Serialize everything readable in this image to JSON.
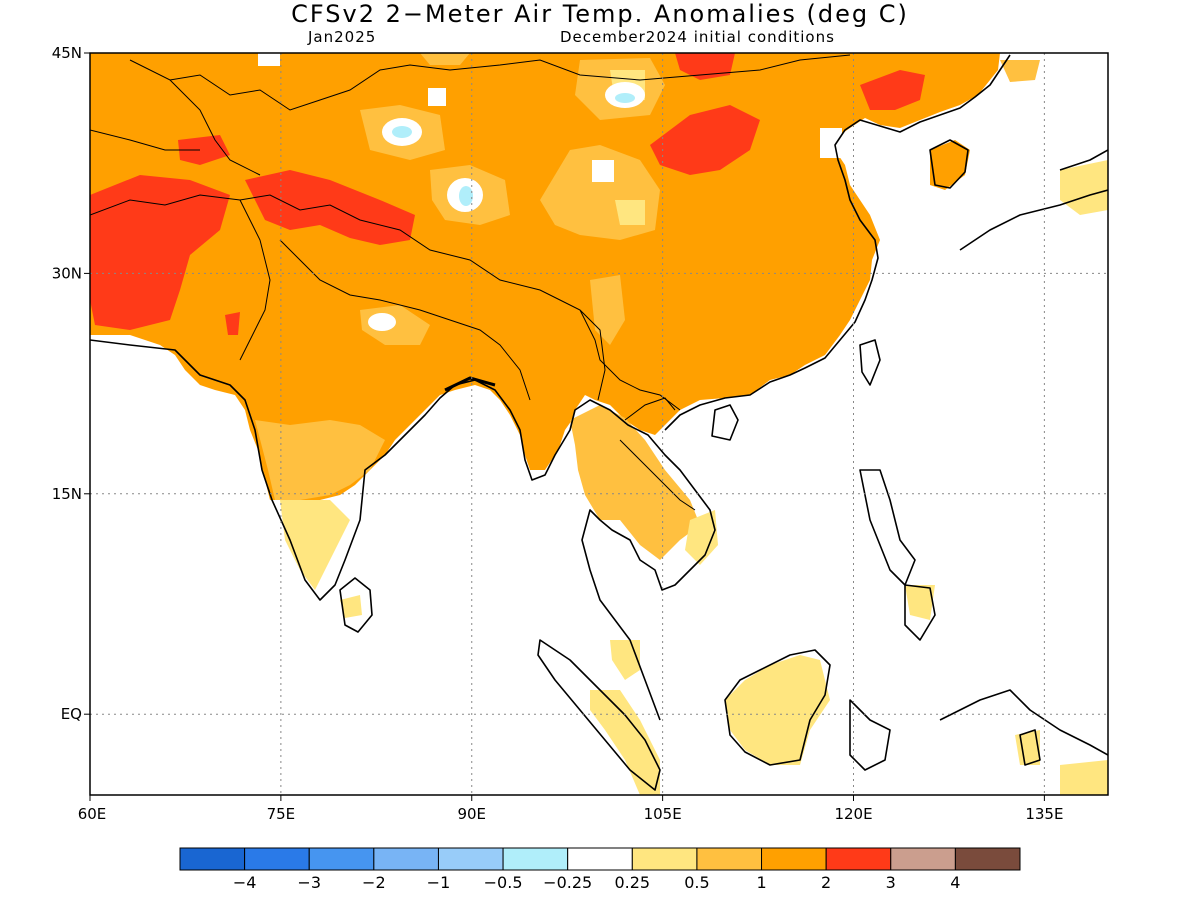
{
  "title": "CFSv2 2−Meter Air Temp. Anomalies (deg C)",
  "subtitle_left": "Jan2025",
  "subtitle_right": "December2024 initial conditions",
  "map": {
    "lon_range": [
      60,
      140
    ],
    "lat_range": [
      -5.5,
      45
    ],
    "x_ticks": [
      {
        "value": 60,
        "label": "60E"
      },
      {
        "value": 75,
        "label": "75E"
      },
      {
        "value": 90,
        "label": "90E"
      },
      {
        "value": 105,
        "label": "105E"
      },
      {
        "value": 120,
        "label": "120E"
      },
      {
        "value": 135,
        "label": "135E"
      }
    ],
    "y_ticks": [
      {
        "value": 45,
        "label": "45N"
      },
      {
        "value": 30,
        "label": "30N"
      },
      {
        "value": 15,
        "label": "15N"
      },
      {
        "value": 0,
        "label": "EQ"
      }
    ],
    "grid": "dotted"
  },
  "colorbar": {
    "colors": [
      "#1966d2",
      "#2a7ae8",
      "#4695f0",
      "#78b4f5",
      "#98ccf9",
      "#b0eefa",
      "#ffffff",
      "#ffe680",
      "#ffc040",
      "#ffa000",
      "#ff3a18",
      "#cb9e8e",
      "#7a4b3c"
    ],
    "labels": [
      "−4",
      "−3",
      "−2",
      "−1",
      "−0.5",
      "−0.25",
      "0.25",
      "0.5",
      "1",
      "2",
      "3",
      "4"
    ]
  }
}
